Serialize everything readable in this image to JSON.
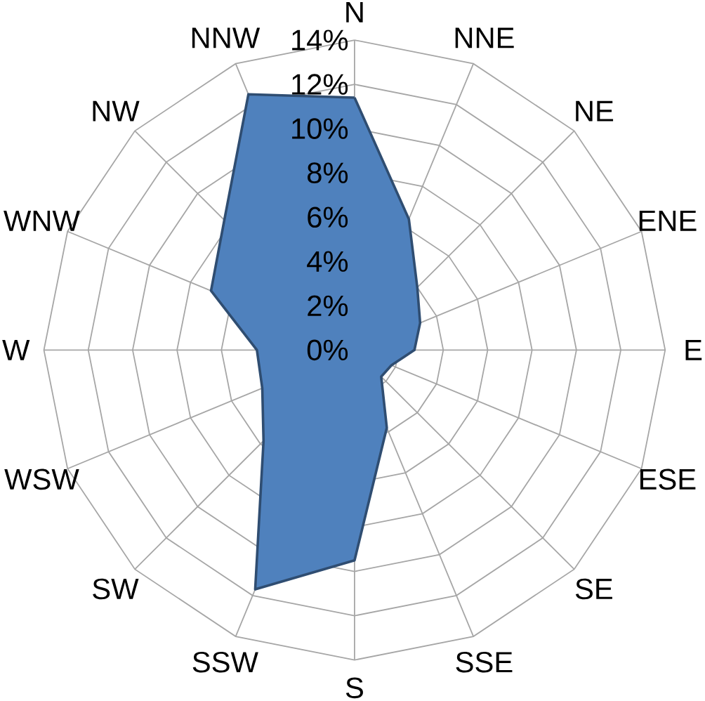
{
  "chart_data": {
    "type": "radar",
    "categories": [
      "N",
      "NNE",
      "NE",
      "ENE",
      "E",
      "ESE",
      "SE",
      "SSE",
      "S",
      "SSW",
      "SW",
      "WSW",
      "W",
      "WNW",
      "NW",
      "NNW"
    ],
    "series": [
      {
        "color": "#4f81bd",
        "values": [
          11.4,
          6.4,
          4.0,
          3.2,
          2.7,
          1.8,
          1.7,
          3.8,
          9.5,
          11.7,
          5.8,
          4.5,
          4.4,
          7.0,
          8.3,
          12.5
        ]
      }
    ],
    "ylim": [
      0,
      14
    ],
    "yticks": [
      {
        "value": 0,
        "label": "0%"
      },
      {
        "value": 2,
        "label": "2%"
      },
      {
        "value": 4,
        "label": "4%"
      },
      {
        "value": 6,
        "label": "6%"
      },
      {
        "value": 8,
        "label": "8%"
      },
      {
        "value": 10,
        "label": "10%"
      },
      {
        "value": 12,
        "label": "12%"
      },
      {
        "value": 14,
        "label": "14%"
      }
    ],
    "grid": true
  }
}
